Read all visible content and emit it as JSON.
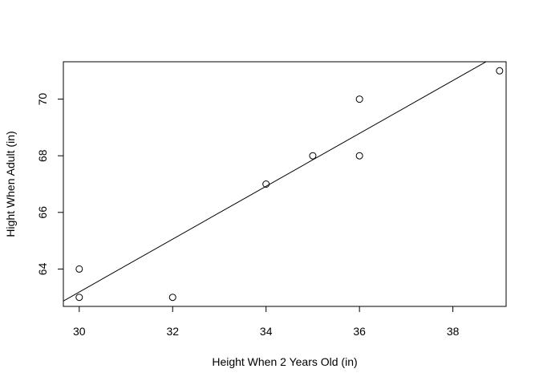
{
  "chart_data": {
    "type": "scatter",
    "title": "",
    "xlabel": "Height When 2 Years Old (in)",
    "ylabel": "Hight When Adult (in)",
    "xlim": [
      29.66,
      39.14
    ],
    "ylim": [
      62.68,
      71.32
    ],
    "x_ticks": [
      30,
      32,
      34,
      36,
      38
    ],
    "y_ticks": [
      64,
      66,
      68,
      70
    ],
    "points": [
      {
        "x": 30,
        "y": 63
      },
      {
        "x": 30,
        "y": 64
      },
      {
        "x": 32,
        "y": 63
      },
      {
        "x": 34,
        "y": 67
      },
      {
        "x": 35,
        "y": 68
      },
      {
        "x": 36,
        "y": 68
      },
      {
        "x": 36,
        "y": 70
      },
      {
        "x": 39,
        "y": 71
      }
    ],
    "fit_line": {
      "intercept": 35.18,
      "slope": 0.9336
    },
    "marker": "open-circle",
    "grid": false,
    "box": true,
    "colors": {
      "points": "#000000",
      "line": "#000000",
      "axes": "#000000",
      "background": "#ffffff"
    }
  }
}
